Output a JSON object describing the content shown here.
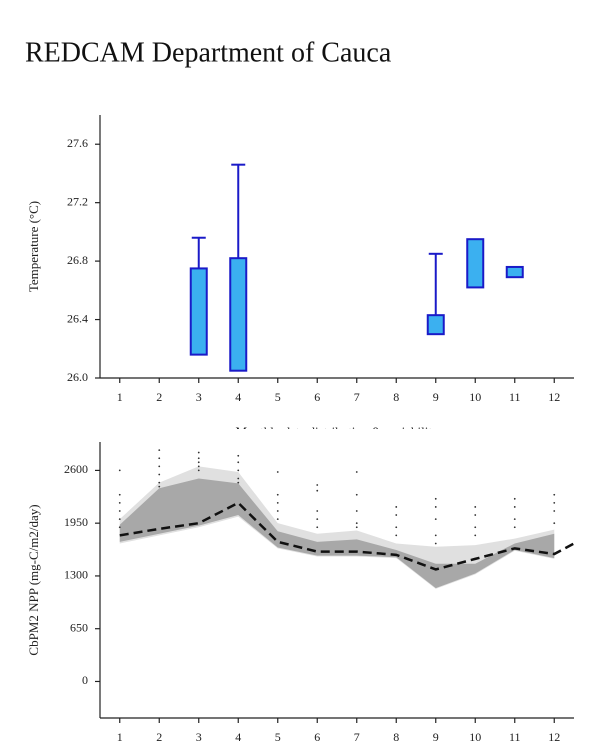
{
  "title": "REDCAM Department of Cauca",
  "chart_data": [
    {
      "type": "box",
      "ylabel": "Temperature (°C)",
      "xlabel": "Monthly data distribution & variability",
      "xlim": [
        0.5,
        12.5
      ],
      "xticks": [
        1,
        2,
        3,
        4,
        5,
        6,
        7,
        8,
        9,
        10,
        11,
        12
      ],
      "ylim": [
        26.0,
        27.8
      ],
      "yticks": [
        {
          "value": 26.0,
          "label": "26.0"
        },
        26.4,
        26.8,
        27.2,
        27.6
      ],
      "fill": "#3bb0f0",
      "stroke": "#1a1ac8",
      "boxes": [
        {
          "x": 3,
          "q1": 26.16,
          "q3": 26.75,
          "max": 26.96
        },
        {
          "x": 4,
          "q1": 26.05,
          "q3": 26.82,
          "max": 27.46
        },
        {
          "x": 9,
          "q1": 26.3,
          "q3": 26.43,
          "max": 26.85
        },
        {
          "x": 10,
          "q1": 26.62,
          "q3": 26.95
        },
        {
          "x": 11,
          "q1": 26.69,
          "q3": 26.76
        }
      ]
    },
    {
      "type": "line",
      "ylabel": "CbPM2 NPP (mg-C/m2/day)",
      "xlim": [
        0.5,
        12.5
      ],
      "xticks": [
        1,
        2,
        3,
        4,
        5,
        6,
        7,
        8,
        9,
        10,
        11,
        12
      ],
      "ylim": [
        -450,
        2950
      ],
      "yticks": [
        0,
        650,
        1300,
        1950,
        2600
      ],
      "bands": [
        {
          "color": "#e0e0e0",
          "x": [
            1,
            2,
            3,
            4,
            5,
            6,
            7,
            8,
            9,
            10,
            11,
            12
          ],
          "upper": [
            2000,
            2450,
            2650,
            2580,
            1950,
            1820,
            1860,
            1700,
            1660,
            1680,
            1760,
            1870
          ],
          "lower": [
            1700,
            1800,
            1900,
            2030,
            1640,
            1540,
            1540,
            1520,
            1140,
            1320,
            1610,
            1510
          ]
        },
        {
          "color": "#a8a8a8",
          "x": [
            1,
            2,
            3,
            4,
            5,
            6,
            7,
            8,
            9,
            10,
            11,
            12
          ],
          "upper": [
            1930,
            2380,
            2500,
            2440,
            1850,
            1720,
            1750,
            1620,
            1450,
            1450,
            1700,
            1820
          ],
          "lower": [
            1720,
            1820,
            1920,
            2050,
            1650,
            1550,
            1550,
            1530,
            1150,
            1330,
            1620,
            1520
          ]
        }
      ],
      "series": [
        {
          "color": "#111111",
          "x": [
            1,
            2,
            3,
            4,
            5,
            6,
            7,
            8,
            9,
            10,
            11,
            12,
            12.5
          ],
          "values": [
            1800,
            1880,
            1950,
            2200,
            1720,
            1600,
            1600,
            1560,
            1380,
            1510,
            1640,
            1570,
            1700
          ]
        }
      ],
      "points": {
        "color": "#333333",
        "x": [
          1,
          1,
          1,
          1,
          1,
          1,
          2,
          2,
          2,
          2,
          2,
          2,
          3,
          3,
          3,
          3,
          3,
          4,
          4,
          4,
          4,
          4,
          5,
          5,
          5,
          5,
          5,
          6,
          6,
          6,
          6,
          6,
          7,
          7,
          7,
          7,
          7,
          8,
          8,
          8,
          8,
          9,
          9,
          9,
          9,
          9,
          10,
          10,
          10,
          10,
          11,
          11,
          11,
          11,
          12,
          12,
          12,
          12
        ],
        "y": [
          2600,
          2300,
          2200,
          2100,
          2000,
          1900,
          2850,
          2750,
          2650,
          2550,
          2450,
          2400,
          2820,
          2750,
          2700,
          2650,
          2600,
          2780,
          2700,
          2600,
          2500,
          2450,
          2580,
          2300,
          2200,
          2100,
          2000,
          2420,
          2350,
          2100,
          2000,
          1900,
          2580,
          2300,
          2100,
          1950,
          1900,
          2150,
          2050,
          1900,
          1800,
          2250,
          2150,
          2000,
          1800,
          1700,
          2150,
          2050,
          1900,
          1800,
          2250,
          2150,
          2000,
          1900,
          2300,
          2200,
          2100,
          1950
        ]
      }
    }
  ]
}
